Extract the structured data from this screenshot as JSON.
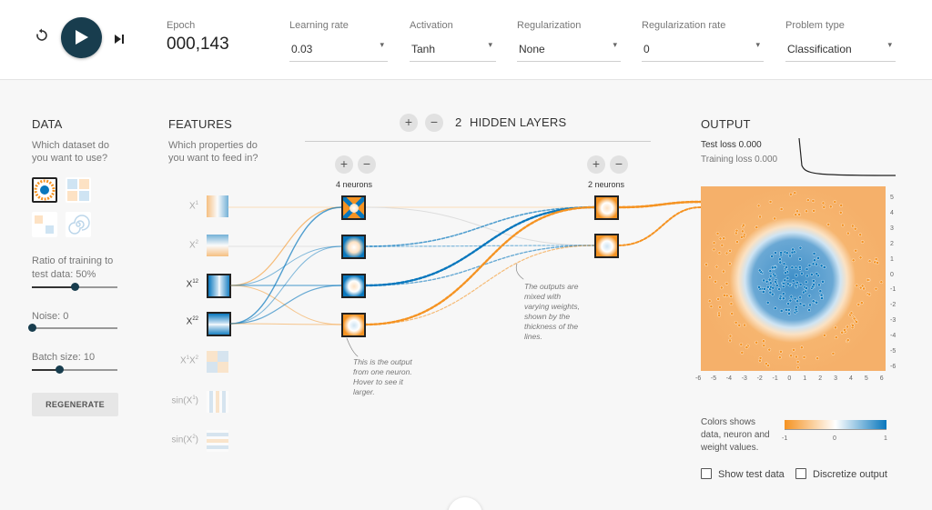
{
  "controls": {
    "reset_icon": "reset-icon",
    "play_icon": "play-icon",
    "step_icon": "step-icon"
  },
  "epoch": {
    "label": "Epoch",
    "value": "000,143"
  },
  "dropdowns": [
    {
      "label": "Learning rate",
      "value": "0.03"
    },
    {
      "label": "Activation",
      "value": "Tanh"
    },
    {
      "label": "Regularization",
      "value": "None"
    },
    {
      "label": "Regularization rate",
      "value": "0"
    },
    {
      "label": "Problem type",
      "value": "Classification"
    }
  ],
  "data_panel": {
    "title": "DATA",
    "question_line1": "Which dataset do",
    "question_line2": "you want to use?",
    "ratio_line1": "Ratio of training to",
    "ratio_line2": "test data:  50%",
    "ratio_fraction": 0.5,
    "noise_label": "Noise:  0",
    "noise_fraction": 0,
    "batch_label": "Batch size:  10",
    "batch_fraction": 0.32,
    "regenerate": "REGENERATE"
  },
  "features_panel": {
    "title": "FEATURES",
    "question_line1": "Which properties do",
    "question_line2": "you want to feed in?",
    "features": [
      {
        "name": "X",
        "sup": "1",
        "active": false
      },
      {
        "name": "X",
        "sup": "2",
        "active": false
      },
      {
        "name": "X",
        "sup": "12",
        "active": true
      },
      {
        "name": "X",
        "sup": "22",
        "active": true
      },
      {
        "name": "X",
        "sup": "1",
        "name2": "X",
        "sup2": "2",
        "active": false
      },
      {
        "name": "sin(X",
        "sup": "1",
        "suffix": ")",
        "active": false
      },
      {
        "name": "sin(X",
        "sup": "2",
        "suffix": ")",
        "active": false
      }
    ]
  },
  "hidden": {
    "count": "2",
    "label": "HIDDEN LAYERS",
    "layer1_neurons": "4 neurons",
    "layer2_neurons": "2 neurons",
    "plus": "+",
    "minus": "−"
  },
  "notes": {
    "neuron_line1": "This is the output",
    "neuron_line2": "from one neuron.",
    "neuron_line3": "Hover to see it",
    "neuron_line4": "larger.",
    "weights_line1": "The outputs are",
    "weights_line2": "mixed with",
    "weights_line3": "varying weights,",
    "weights_line4": "shown by the",
    "weights_line5": "thickness of the",
    "weights_line6": "lines."
  },
  "output": {
    "title": "OUTPUT",
    "test_loss": "Test loss 0.000",
    "training_loss": "Training loss 0.000",
    "axis_ticks": [
      "-6",
      "-5",
      "-4",
      "-3",
      "-2",
      "-1",
      "0",
      "1",
      "2",
      "3",
      "4",
      "5",
      "6"
    ],
    "y_ticks": [
      "5",
      "4",
      "3",
      "2",
      "1",
      "0",
      "-1",
      "-2",
      "-3",
      "-4",
      "-5",
      "-6"
    ],
    "colors_line1": "Colors shows",
    "colors_line2": "data, neuron and",
    "colors_line3": "weight values.",
    "scale_min": "-1",
    "scale_mid": "0",
    "scale_max": "1",
    "show_test_data": "Show test data",
    "discretize_output": "Discretize output"
  },
  "colors": {
    "orange": "#f59322",
    "blue": "#0877bd",
    "dark": "#183d4e"
  }
}
